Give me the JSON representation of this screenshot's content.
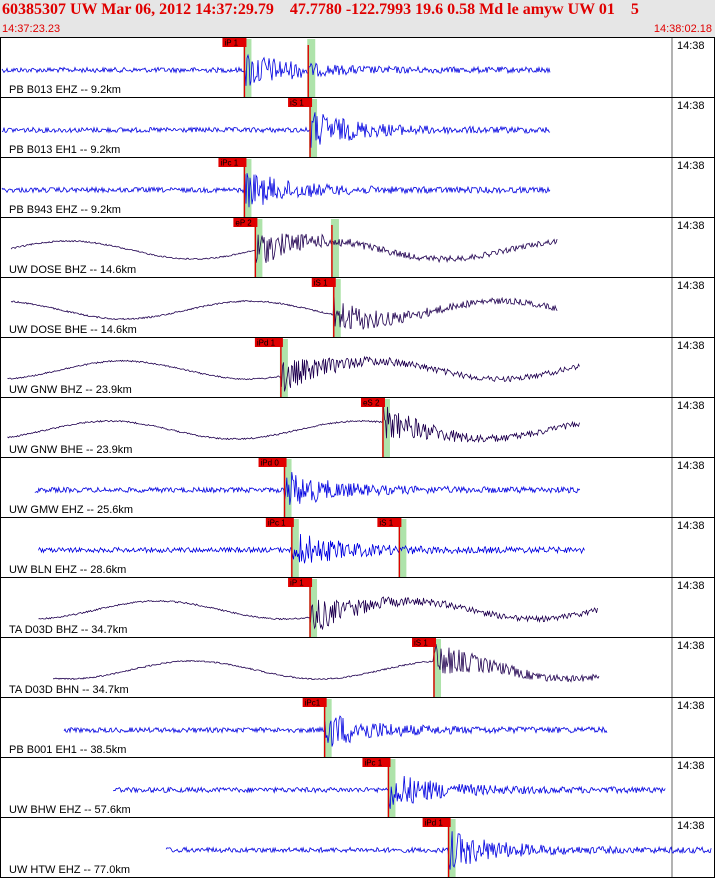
{
  "header": {
    "title": "60385307 UW Mar 06, 2012 14:37:29.79    47.7780 -122.7993 19.6 0.58 Md le amyw UW 01    5",
    "start_time": "14:37:23.23",
    "end_time": "14:38:02.18"
  },
  "colors": {
    "accent": "#e00000",
    "blue_trace": "#0000e0",
    "dark_trace": "#200050",
    "pick_window": "#aee3aa"
  },
  "chart_data": {
    "type": "line",
    "title": "",
    "time_axis": {
      "start": "14:37:23.23",
      "end": "14:38:02.18",
      "duration_s": 38.95,
      "tick_label": "14:38"
    },
    "traces": [
      {
        "label": "PB B013 EHZ -- 9.2km",
        "dist_km": 9.2,
        "color": "blue",
        "picks": [
          {
            "label": "iP 1",
            "t": 13.3
          },
          {
            "label": "",
            "t": 16.8
          }
        ],
        "trace_span_s": [
          0.0,
          30.1
        ]
      },
      {
        "label": "PB B013 EH1 -- 9.2km",
        "dist_km": 9.2,
        "color": "blue",
        "picks": [
          {
            "label": "iS 1",
            "t": 16.9
          }
        ],
        "trace_span_s": [
          0.0,
          30.1
        ]
      },
      {
        "label": "PB B943 EHZ -- 9.2km",
        "dist_km": 9.2,
        "color": "blue",
        "picks": [
          {
            "label": "iPc 1",
            "t": 13.3
          }
        ],
        "trace_span_s": [
          0.0,
          30.1
        ]
      },
      {
        "label": "UW DOSE BHZ -- 14.6km",
        "dist_km": 14.6,
        "color": "dark",
        "picks": [
          {
            "label": "eP 2",
            "t": 13.9
          },
          {
            "label": "",
            "t": 18.1
          }
        ],
        "trace_span_s": [
          0.5,
          30.5
        ]
      },
      {
        "label": "UW DOSE BHE -- 14.6km",
        "dist_km": 14.6,
        "color": "dark",
        "picks": [
          {
            "label": "iS 1",
            "t": 18.2
          }
        ],
        "trace_span_s": [
          0.5,
          30.5
        ]
      },
      {
        "label": "UW GNW BHZ -- 23.9km",
        "dist_km": 23.9,
        "color": "dark",
        "picks": [
          {
            "label": "iPd 1",
            "t": 15.3
          }
        ],
        "trace_span_s": [
          0.3,
          31.7
        ]
      },
      {
        "label": "UW GNW BHE -- 23.9km",
        "dist_km": 23.9,
        "color": "dark",
        "picks": [
          {
            "label": "eS 2",
            "t": 20.9
          }
        ],
        "trace_span_s": [
          0.3,
          31.7
        ]
      },
      {
        "label": "UW GMW EHZ -- 25.6km",
        "dist_km": 25.6,
        "color": "blue",
        "picks": [
          {
            "label": "iPd 0",
            "t": 15.5
          }
        ],
        "trace_span_s": [
          1.8,
          31.7
        ]
      },
      {
        "label": "UW BLN EHZ -- 28.6km",
        "dist_km": 28.6,
        "color": "blue",
        "picks": [
          {
            "label": "iPc 1",
            "t": 15.9
          },
          {
            "label": "iS 1",
            "t": 21.8
          }
        ],
        "trace_span_s": [
          2.0,
          32.0
        ]
      },
      {
        "label": "TA D03D BHZ -- 34.7km",
        "dist_km": 34.7,
        "color": "dark",
        "picks": [
          {
            "label": "iP 1",
            "t": 16.9
          }
        ],
        "trace_span_s": [
          2.0,
          32.7
        ]
      },
      {
        "label": "TA D03D BHN -- 34.7km",
        "dist_km": 34.7,
        "color": "dark",
        "picks": [
          {
            "label": "iS 1",
            "t": 23.7
          }
        ],
        "trace_span_s": [
          2.8,
          32.8
        ]
      },
      {
        "label": "PB B001 EH1 -- 38.5km",
        "dist_km": 38.5,
        "color": "blue",
        "picks": [
          {
            "label": "iPc1",
            "t": 17.7
          }
        ],
        "trace_span_s": [
          3.4,
          33.2
        ]
      },
      {
        "label": "UW BHW EHZ -- 57.6km",
        "dist_km": 57.6,
        "color": "blue",
        "picks": [
          {
            "label": "iPc 1",
            "t": 21.2
          }
        ],
        "trace_span_s": [
          6.1,
          36.4
        ]
      },
      {
        "label": "UW HTW EHZ -- 77.0km",
        "dist_km": 77.0,
        "color": "blue",
        "picks": [
          {
            "label": "iPd 1",
            "t": 24.5
          }
        ],
        "trace_span_s": [
          9.0,
          38.9
        ]
      }
    ]
  }
}
